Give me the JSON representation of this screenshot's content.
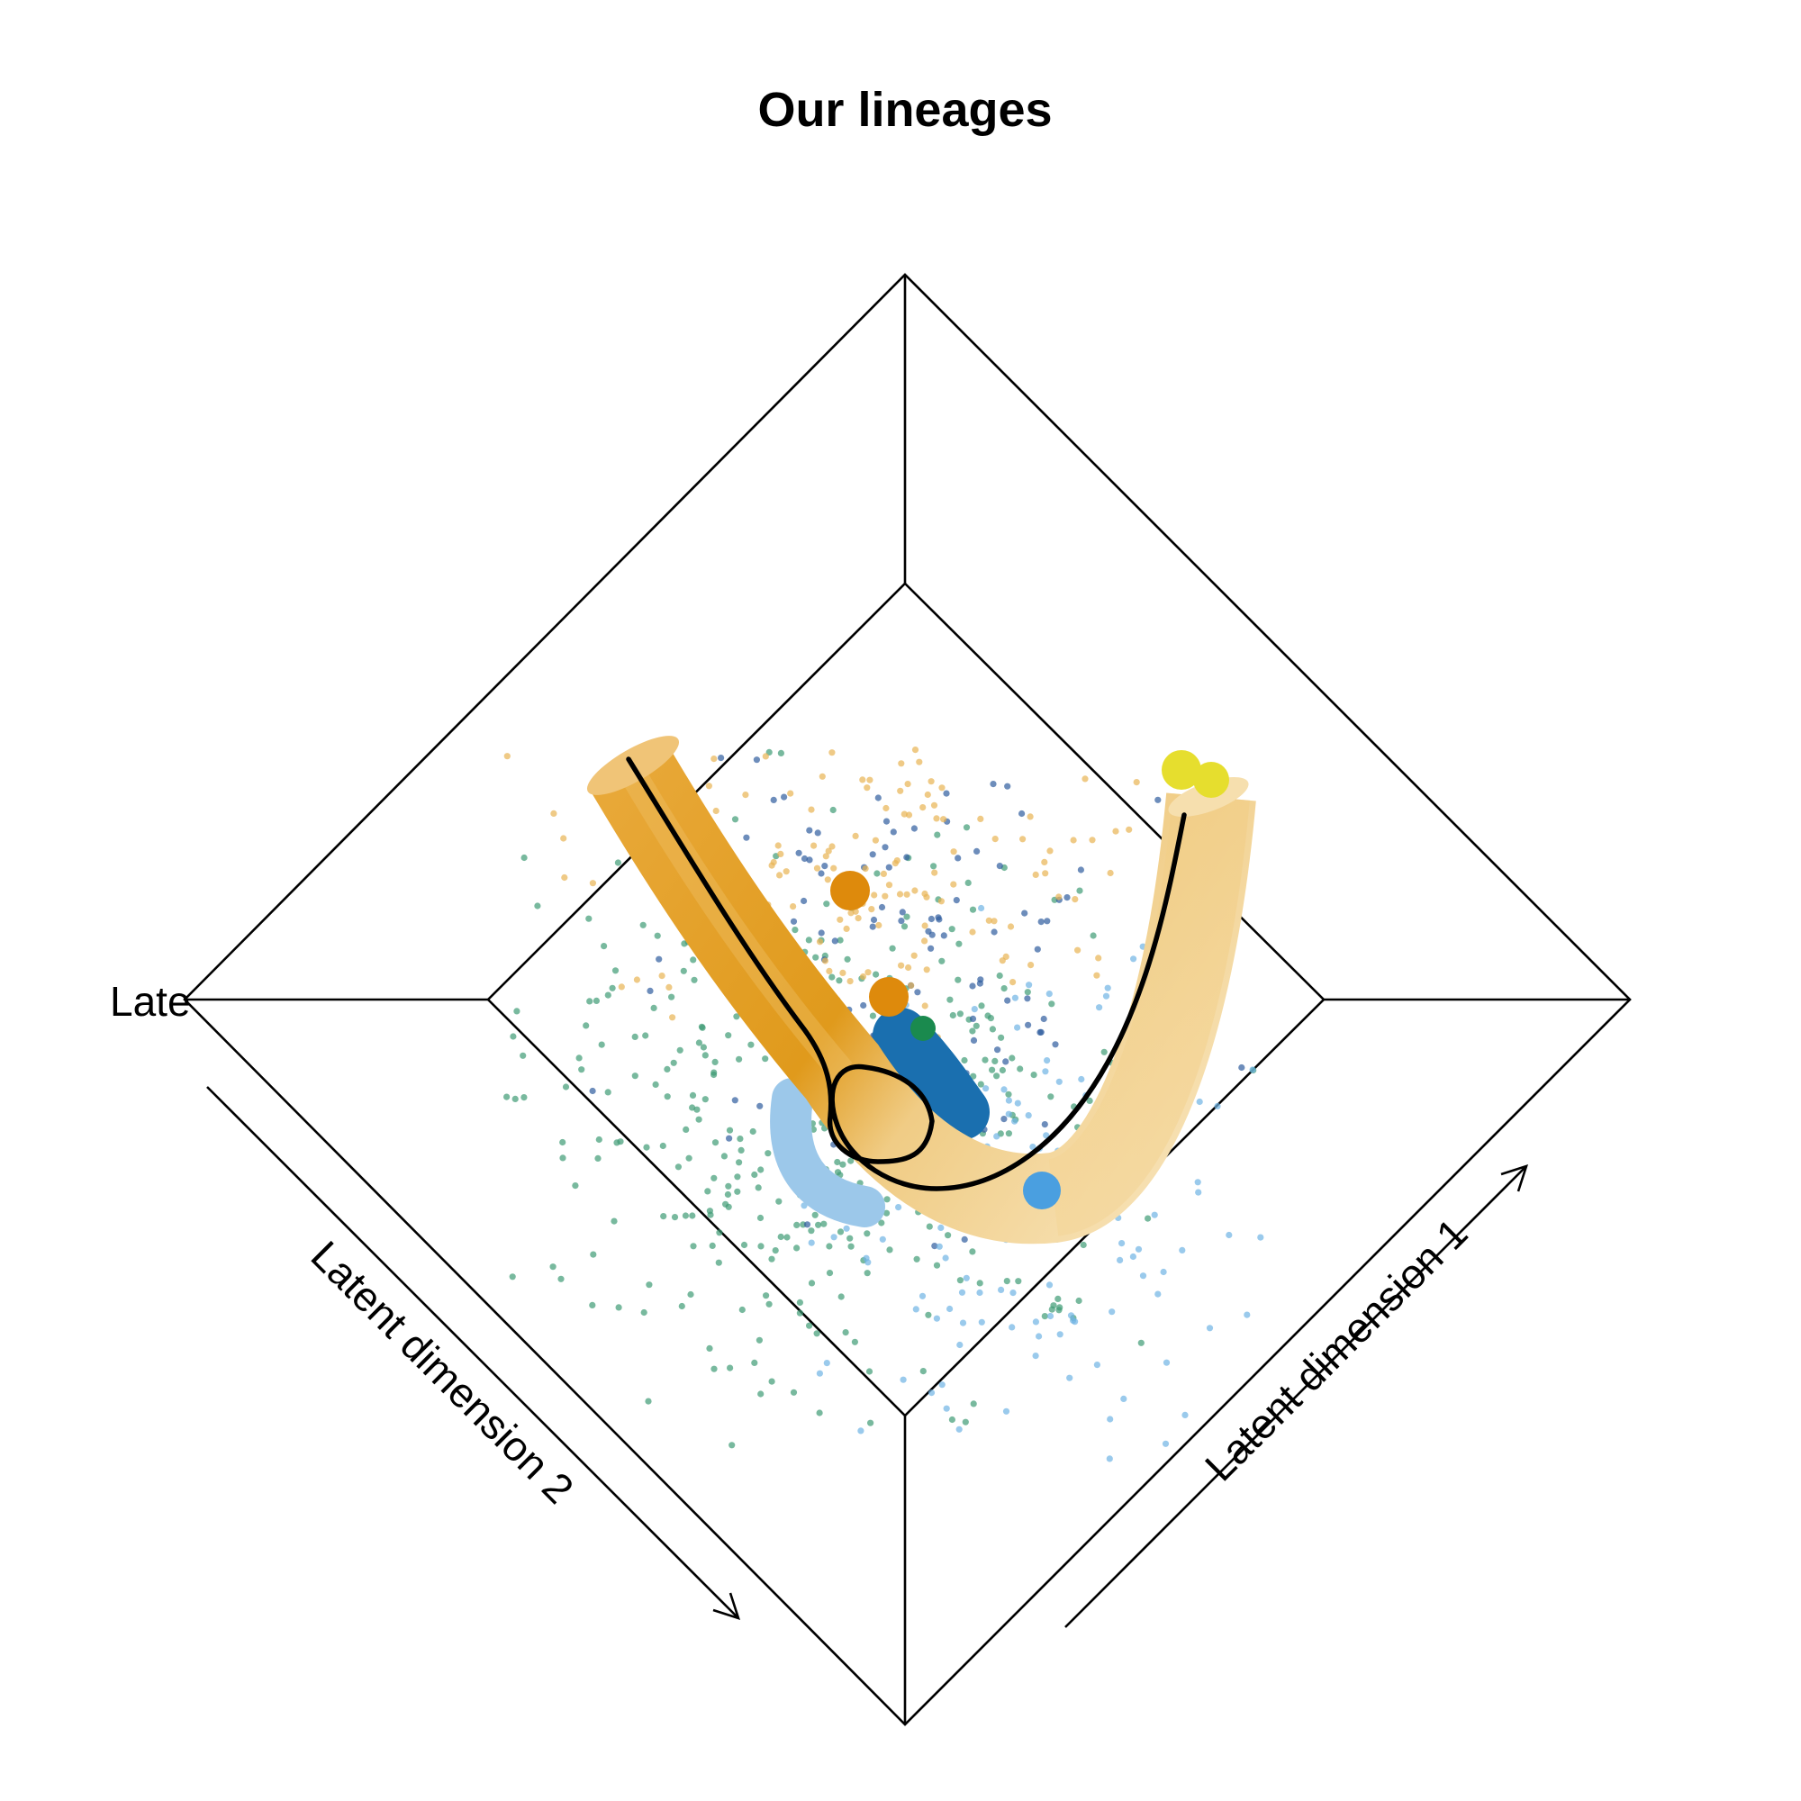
{
  "chart_data": {
    "type": "scatter",
    "title": "Our lineages",
    "axis_labels": {
      "dim1": "Latent dimension 1",
      "dim2": "Latent dimension 2",
      "dim3_clipped": "Late"
    },
    "colors": {
      "tube_dark": "#E09A1C",
      "tube_light": "#F5DDA8",
      "curve": "#000000",
      "blue_tube": "#1A6FAF",
      "light_blue_tube": "#9CC8EA",
      "point_green": "#3E9B75",
      "point_navy": "#2F5C9E",
      "point_gold": "#E8B452",
      "point_lightblue": "#6FB4E4",
      "centroid_orange": "#DE8A0C",
      "centroid_yellow": "#E6DE2E",
      "centroid_blue": "#4A9FE0",
      "centroid_green": "#1A8A4E"
    },
    "point_clusters": [
      {
        "name": "green",
        "count": 430
      },
      {
        "name": "navy",
        "count": 150
      },
      {
        "name": "gold",
        "count": 170
      },
      {
        "name": "lightblue",
        "count": 160
      }
    ]
  }
}
